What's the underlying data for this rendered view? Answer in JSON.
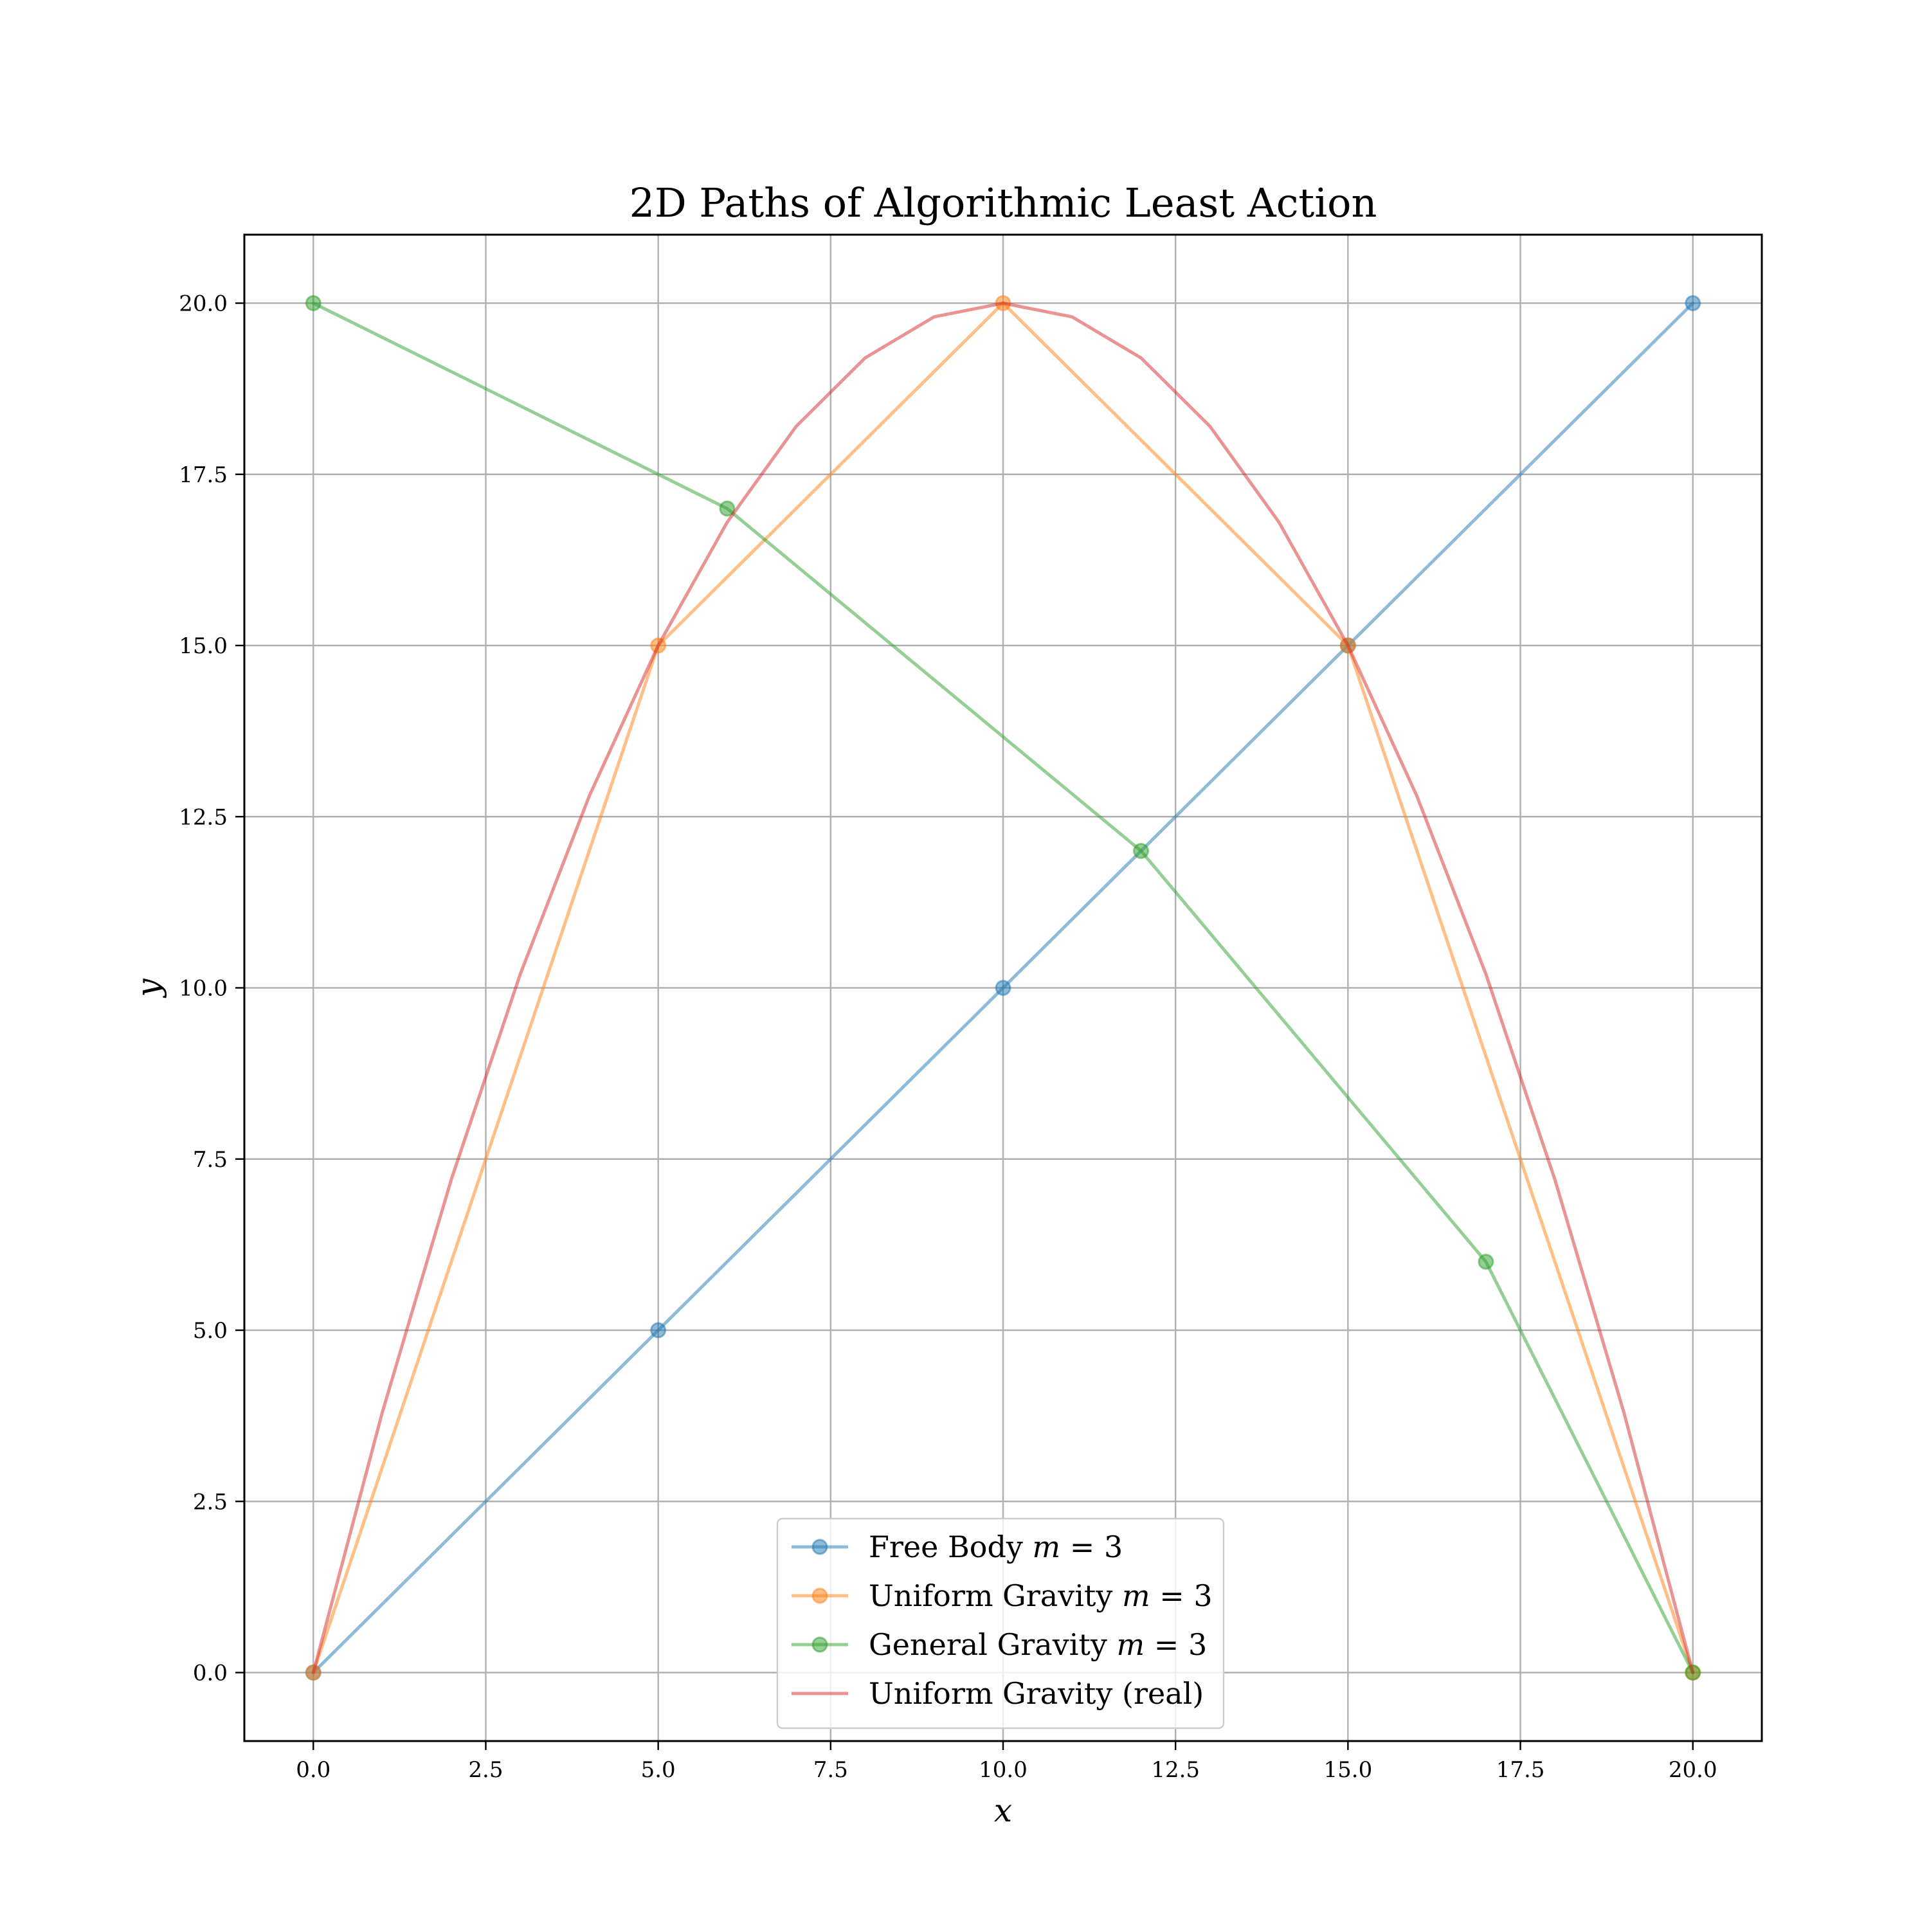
{
  "chart_data": {
    "type": "line",
    "title": "2D Paths of Algorithmic Least Action",
    "xlabel": "x",
    "ylabel": "y",
    "xlim": [
      -1,
      21
    ],
    "ylim": [
      -1,
      21
    ],
    "xticks": [
      0.0,
      2.5,
      5.0,
      7.5,
      10.0,
      12.5,
      15.0,
      17.5,
      20.0
    ],
    "yticks": [
      0.0,
      2.5,
      5.0,
      7.5,
      10.0,
      12.5,
      15.0,
      17.5,
      20.0
    ],
    "xtick_labels": [
      "0.0",
      "2.5",
      "5.0",
      "7.5",
      "10.0",
      "12.5",
      "15.0",
      "17.5",
      "20.0"
    ],
    "ytick_labels": [
      "0.0",
      "2.5",
      "5.0",
      "7.5",
      "10.0",
      "12.5",
      "15.0",
      "17.5",
      "20.0"
    ],
    "grid": true,
    "legend_position": "bottom-center",
    "series": [
      {
        "name": "Free Body m = 3",
        "legend_prefix": "Free Body ",
        "legend_math": "m",
        "legend_suffix": " = 3",
        "color": "#1f77b4",
        "markers": true,
        "x": [
          0,
          5,
          10,
          15,
          20
        ],
        "y": [
          0,
          5,
          10,
          15,
          20
        ]
      },
      {
        "name": "Uniform Gravity m = 3",
        "legend_prefix": "Uniform Gravity ",
        "legend_math": "m",
        "legend_suffix": " = 3",
        "color": "#ff7f0e",
        "markers": true,
        "x": [
          0,
          5,
          10,
          15,
          20
        ],
        "y": [
          0,
          15,
          20,
          15,
          0
        ]
      },
      {
        "name": "General Gravity m = 3",
        "legend_prefix": "General Gravity ",
        "legend_math": "m",
        "legend_suffix": " = 3",
        "color": "#2ca02c",
        "markers": true,
        "x": [
          0,
          6,
          12,
          17,
          20
        ],
        "y": [
          20,
          17,
          12,
          6,
          0
        ]
      },
      {
        "name": "Uniform Gravity (real)",
        "legend_prefix": "Uniform Gravity (real)",
        "legend_math": "",
        "legend_suffix": "",
        "color": "#d62728",
        "markers": false,
        "x": [
          0,
          1,
          2,
          3,
          4,
          5,
          6,
          7,
          8,
          9,
          10,
          11,
          12,
          13,
          14,
          15,
          16,
          17,
          18,
          19,
          20
        ],
        "y": [
          0,
          3.8,
          7.2,
          10.2,
          12.8,
          15,
          16.8,
          18.2,
          19.2,
          19.8,
          20,
          19.8,
          19.2,
          18.2,
          16.8,
          15,
          12.8,
          10.2,
          7.2,
          3.8,
          0
        ]
      }
    ]
  }
}
